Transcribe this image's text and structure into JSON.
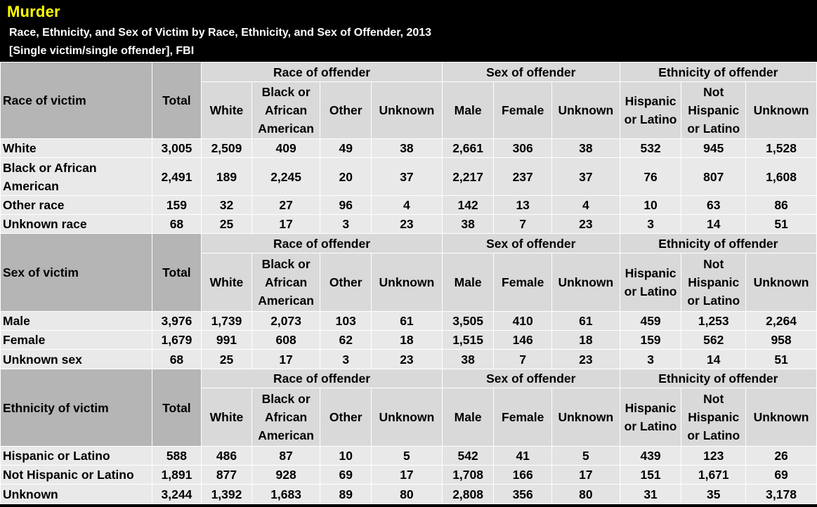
{
  "title": "Murder",
  "subtitle_line1": "Race, Ethnicity, and Sex of Victim by Race, Ethnicity, and Sex of Offender, 2013",
  "subtitle_line2": "[Single victim/single offender], FBI",
  "group_headers": [
    "Race of offender",
    "Sex of offender",
    "Ethnicity of offender"
  ],
  "total_label": "Total",
  "col_headers": [
    "White",
    "Black or African American",
    "Other",
    "Unknown",
    "Male",
    "Female",
    "Unknown",
    "Hispanic or Latino",
    "Not Hispanic or Latino",
    "Unknown"
  ],
  "sections": [
    {
      "label": "Race of victim",
      "rows": [
        {
          "label": "White",
          "total": "3,005",
          "values": [
            "2,509",
            "409",
            "49",
            "38",
            "2,661",
            "306",
            "38",
            "532",
            "945",
            "1,528"
          ]
        },
        {
          "label": "Black or African American",
          "total": "2,491",
          "values": [
            "189",
            "2,245",
            "20",
            "37",
            "2,217",
            "237",
            "37",
            "76",
            "807",
            "1,608"
          ]
        },
        {
          "label": "Other race",
          "total": "159",
          "values": [
            "32",
            "27",
            "96",
            "4",
            "142",
            "13",
            "4",
            "10",
            "63",
            "86"
          ]
        },
        {
          "label": "Unknown race",
          "total": "68",
          "values": [
            "25",
            "17",
            "3",
            "23",
            "38",
            "7",
            "23",
            "3",
            "14",
            "51"
          ]
        }
      ]
    },
    {
      "label": "Sex of victim",
      "rows": [
        {
          "label": "Male",
          "total": "3,976",
          "values": [
            "1,739",
            "2,073",
            "103",
            "61",
            "3,505",
            "410",
            "61",
            "459",
            "1,253",
            "2,264"
          ]
        },
        {
          "label": "Female",
          "total": "1,679",
          "values": [
            "991",
            "608",
            "62",
            "18",
            "1,515",
            "146",
            "18",
            "159",
            "562",
            "958"
          ]
        },
        {
          "label": "Unknown sex",
          "total": "68",
          "values": [
            "25",
            "17",
            "3",
            "23",
            "38",
            "7",
            "23",
            "3",
            "14",
            "51"
          ]
        }
      ]
    },
    {
      "label": "Ethnicity of victim",
      "rows": [
        {
          "label": "Hispanic or Latino",
          "total": "588",
          "values": [
            "486",
            "87",
            "10",
            "5",
            "542",
            "41",
            "5",
            "439",
            "123",
            "26"
          ]
        },
        {
          "label": "Not Hispanic or Latino",
          "total": "1,891",
          "values": [
            "877",
            "928",
            "69",
            "17",
            "1,708",
            "166",
            "17",
            "151",
            "1,671",
            "69"
          ]
        },
        {
          "label": "Unknown",
          "total": "3,244",
          "values": [
            "1,392",
            "1,683",
            "89",
            "80",
            "2,808",
            "356",
            "80",
            "31",
            "35",
            "3,178"
          ]
        }
      ]
    }
  ],
  "colors": {
    "title": "#ffff00",
    "header_bg": "#b5b5b5",
    "band_bg": "#d9d9d9",
    "cell_bg": "#e9e9e9",
    "sex_bg": "#e3e3e3"
  }
}
